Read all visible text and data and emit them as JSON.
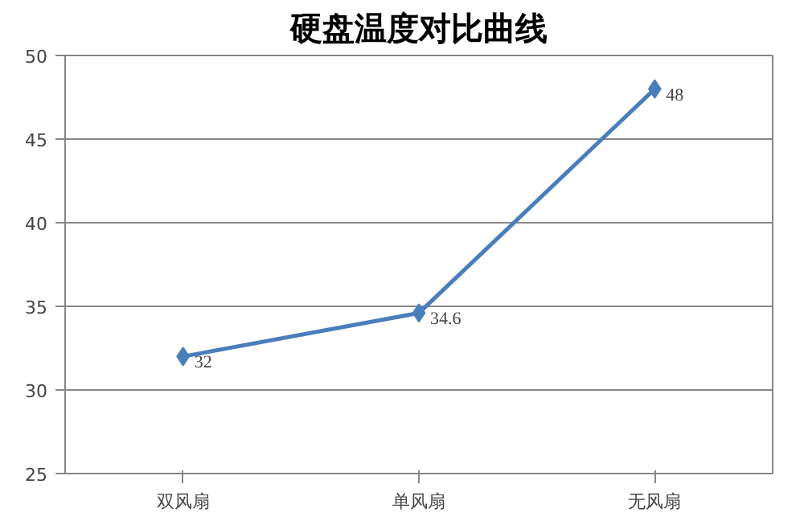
{
  "chart_data": {
    "type": "line",
    "title": "硬盘温度对比曲线",
    "categories": [
      "双风扇",
      "单风扇",
      "无风扇"
    ],
    "series": [
      {
        "color": "#4a7ebb",
        "values": [
          32,
          34.6,
          48
        ]
      }
    ],
    "ylim": [
      25,
      50
    ],
    "yticks": [
      25,
      30,
      35,
      40,
      45,
      50
    ],
    "grid": "y",
    "marker": "diamond",
    "line_style": "solid",
    "data_labels": true
  }
}
